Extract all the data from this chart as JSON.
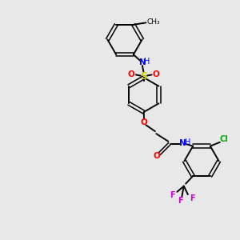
{
  "background_color": "#e8e8e8",
  "bond_color": "#000000",
  "atom_colors": {
    "N": "#0000ff",
    "H": "#008080",
    "O": "#ff0000",
    "S": "#cccc00",
    "Cl": "#00aa00",
    "F": "#cc00cc",
    "C": "#000000"
  },
  "figsize": [
    3.0,
    3.0
  ],
  "dpi": 100,
  "xlim": [
    0,
    10
  ],
  "ylim": [
    0,
    10
  ]
}
